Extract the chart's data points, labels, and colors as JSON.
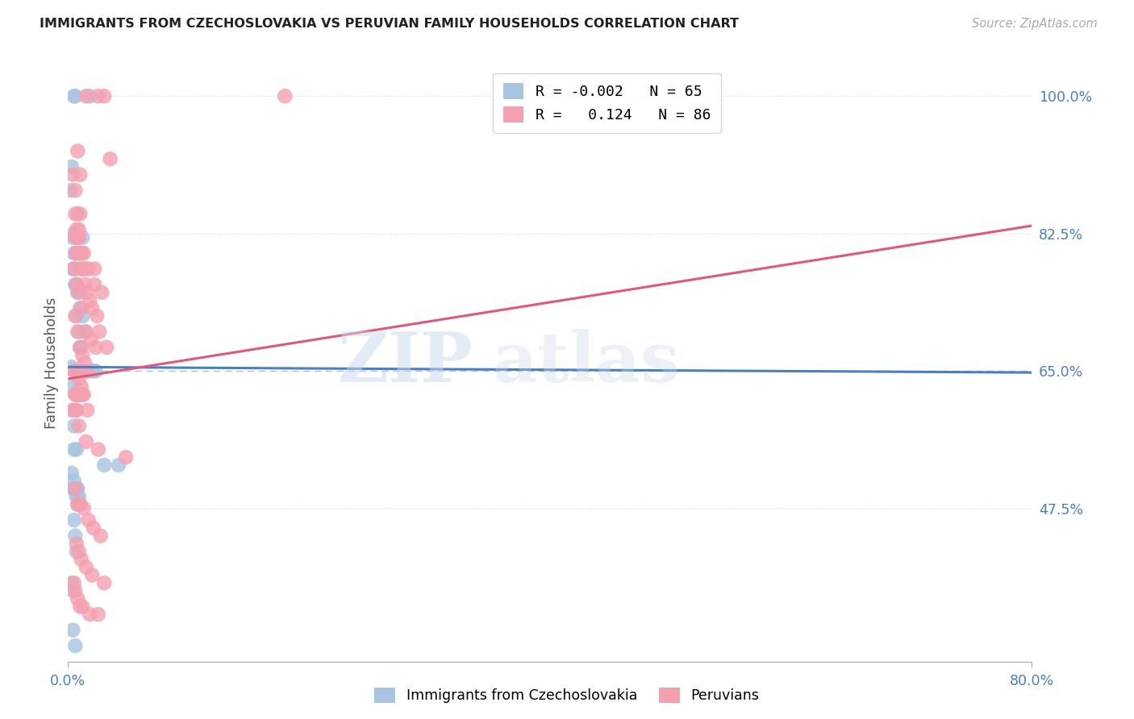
{
  "title": "IMMIGRANTS FROM CZECHOSLOVAKIA VS PERUVIAN FAMILY HOUSEHOLDS CORRELATION CHART",
  "source": "Source: ZipAtlas.com",
  "ylabel": "Family Households",
  "yticks": [
    100.0,
    82.5,
    65.0,
    47.5
  ],
  "ytick_labels": [
    "100.0%",
    "82.5%",
    "65.0%",
    "47.5%"
  ],
  "xmin": 0.0,
  "xmax": 80.0,
  "ymin": 28.0,
  "ymax": 104.0,
  "blue_R": "-0.002",
  "blue_N": "65",
  "pink_R": "0.124",
  "pink_N": "86",
  "legend_label_blue": "Immigrants from Czechoslovakia",
  "legend_label_pink": "Peruvians",
  "blue_color": "#a8c4e0",
  "pink_color": "#f4a0b0",
  "blue_line_color": "#4a7fc1",
  "pink_line_color": "#e05878",
  "watermark_zip": "ZIP",
  "watermark_atlas": "atlas",
  "blue_line_x0": 0.0,
  "blue_line_x1": 80.0,
  "blue_line_y0": 65.5,
  "blue_line_y1": 64.8,
  "pink_line_x0": 0.0,
  "pink_line_x1": 80.0,
  "pink_line_y0": 64.0,
  "pink_line_y1": 83.5,
  "blue_scatter_x": [
    0.5,
    0.8,
    1.0,
    0.4,
    0.6,
    0.7,
    0.9,
    1.1,
    1.3,
    1.5,
    1.7,
    1.9,
    2.1,
    2.3,
    0.2,
    0.4,
    0.5,
    0.6,
    0.7,
    0.8,
    1.0,
    1.2,
    1.4,
    0.3,
    0.5,
    0.7,
    0.9,
    1.1,
    0.4,
    0.6,
    0.8,
    1.0,
    0.3,
    0.5,
    0.7,
    0.3,
    0.5,
    0.7,
    4.2,
    0.6,
    0.8,
    0.9,
    1.0,
    3.0,
    0.4,
    0.6,
    0.7,
    0.8,
    0.5,
    0.6,
    0.7,
    0.3,
    0.4,
    0.5,
    0.6,
    0.7,
    0.8,
    1.0,
    0.5,
    1.8,
    0.4,
    0.6,
    0.7,
    0.3,
    1.2
  ],
  "blue_scatter_y": [
    82.5,
    85.0,
    80.0,
    78.0,
    76.0,
    72.0,
    70.0,
    68.0,
    65.0,
    65.0,
    65.0,
    65.0,
    65.0,
    65.0,
    88.0,
    82.0,
    80.0,
    78.0,
    76.0,
    75.0,
    73.0,
    72.0,
    70.0,
    65.5,
    65.0,
    65.0,
    65.0,
    65.0,
    63.0,
    62.0,
    62.0,
    62.0,
    60.0,
    58.0,
    55.0,
    52.0,
    51.0,
    50.0,
    53.0,
    50.0,
    50.0,
    49.0,
    48.0,
    53.0,
    50.0,
    50.0,
    49.0,
    48.0,
    46.0,
    44.0,
    42.0,
    38.0,
    37.0,
    100.0,
    100.0,
    80.0,
    75.0,
    68.0,
    55.0,
    100.0,
    32.0,
    30.0,
    60.0,
    91.0,
    82.0
  ],
  "pink_scatter_x": [
    2.5,
    1.5,
    3.0,
    3.5,
    0.7,
    0.9,
    1.1,
    1.3,
    1.7,
    2.2,
    2.8,
    0.4,
    0.6,
    0.8,
    1.0,
    1.2,
    1.4,
    1.6,
    1.8,
    2.0,
    2.4,
    2.6,
    3.2,
    0.5,
    0.7,
    0.9,
    1.1,
    1.5,
    1.9,
    2.3,
    0.6,
    0.8,
    1.0,
    1.2,
    1.4,
    1.6,
    0.5,
    0.7,
    0.9,
    1.1,
    1.3,
    0.6,
    0.8,
    1.0,
    1.2,
    0.5,
    0.7,
    0.9,
    1.5,
    2.5,
    4.8,
    0.6,
    0.8,
    1.0,
    1.3,
    1.7,
    2.1,
    2.7,
    0.7,
    0.9,
    1.1,
    1.5,
    2.0,
    3.0,
    0.5,
    0.6,
    0.8,
    1.0,
    1.2,
    1.8,
    2.5,
    0.7,
    0.9,
    1.1,
    1.4,
    2.2,
    0.6,
    0.8,
    1.0,
    1.6,
    18.0,
    1.0,
    0.6,
    0.8,
    1.0,
    0.8
  ],
  "pink_scatter_y": [
    100.0,
    100.0,
    100.0,
    92.0,
    83.0,
    82.0,
    80.0,
    80.0,
    78.0,
    76.0,
    75.0,
    90.0,
    88.0,
    82.0,
    80.0,
    78.0,
    76.0,
    75.0,
    74.0,
    73.0,
    72.0,
    70.0,
    68.0,
    78.0,
    76.0,
    75.0,
    73.0,
    70.0,
    69.0,
    68.0,
    72.0,
    70.0,
    68.0,
    67.0,
    66.0,
    65.0,
    65.0,
    65.0,
    64.0,
    63.0,
    62.0,
    62.0,
    62.0,
    62.0,
    62.0,
    60.0,
    60.0,
    58.0,
    56.0,
    55.0,
    54.0,
    50.0,
    48.0,
    48.0,
    47.5,
    46.0,
    45.0,
    44.0,
    43.0,
    42.0,
    41.0,
    40.0,
    39.0,
    38.0,
    38.0,
    37.0,
    36.0,
    35.0,
    35.0,
    34.0,
    34.0,
    80.0,
    83.0,
    80.0,
    78.0,
    78.0,
    85.0,
    82.0,
    85.0,
    60.0,
    100.0,
    90.0,
    82.0,
    80.0,
    78.0,
    93.0
  ]
}
